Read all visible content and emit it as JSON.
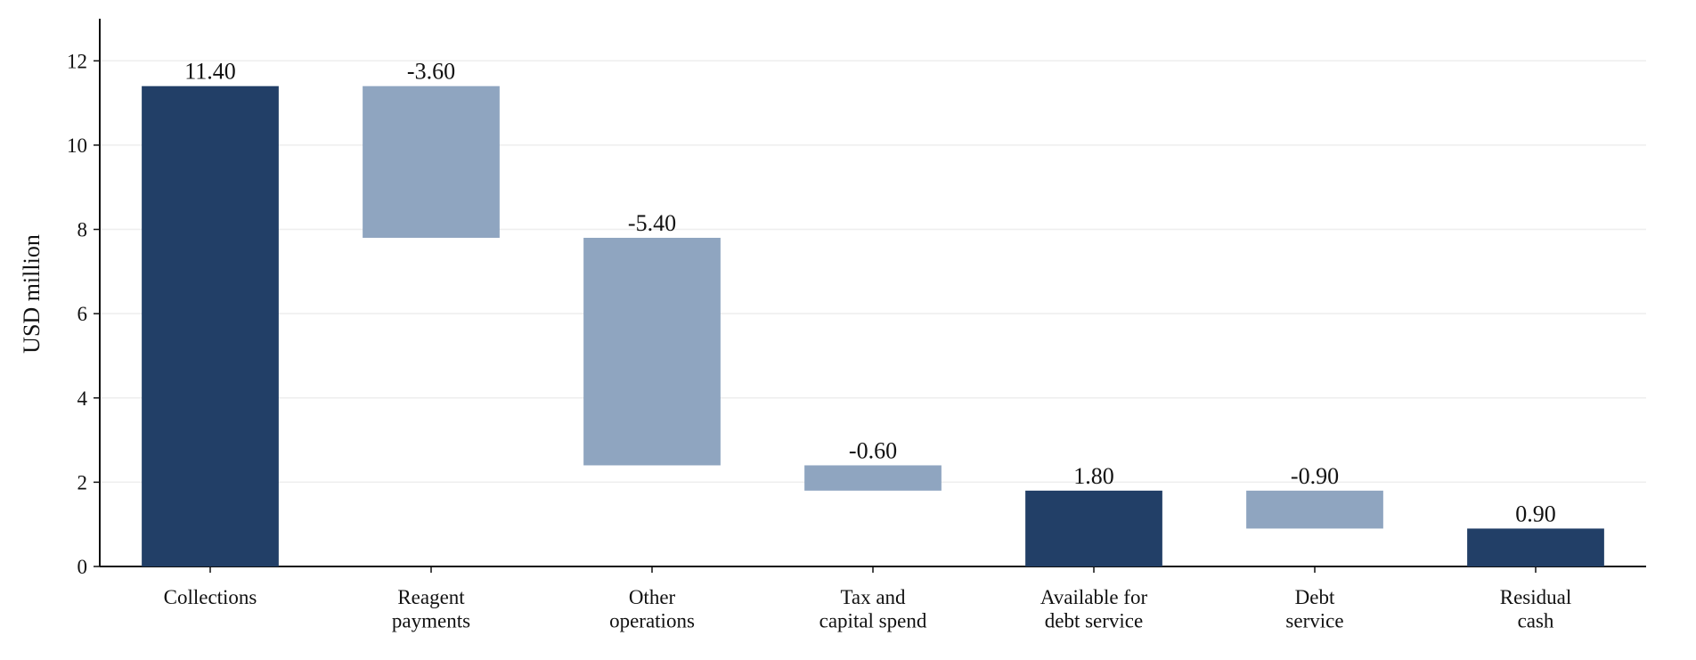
{
  "chart_data": {
    "type": "waterfall",
    "ylabel": "USD million",
    "categories": [
      "Collections",
      "Reagent\npayments",
      "Other\noperations",
      "Tax and\ncapital spend",
      "Available for\ndebt service",
      "Debt\nservice",
      "Residual\ncash"
    ],
    "values": [
      11.4,
      -3.6,
      -5.4,
      -0.6,
      1.8,
      -0.9,
      0.9
    ],
    "value_labels": [
      "11.40",
      "-3.60",
      "-5.40",
      "-0.60",
      "1.80",
      "-0.90",
      "0.90"
    ],
    "colors": [
      "#223f67",
      "#8fa5c0",
      "#8fa5c0",
      "#8fa5c0",
      "#223f67",
      "#8fa5c0",
      "#223f67"
    ],
    "ylim": [
      0,
      13
    ],
    "yticks": [
      0,
      2,
      4,
      6,
      8,
      10,
      12
    ],
    "grid": true
  }
}
